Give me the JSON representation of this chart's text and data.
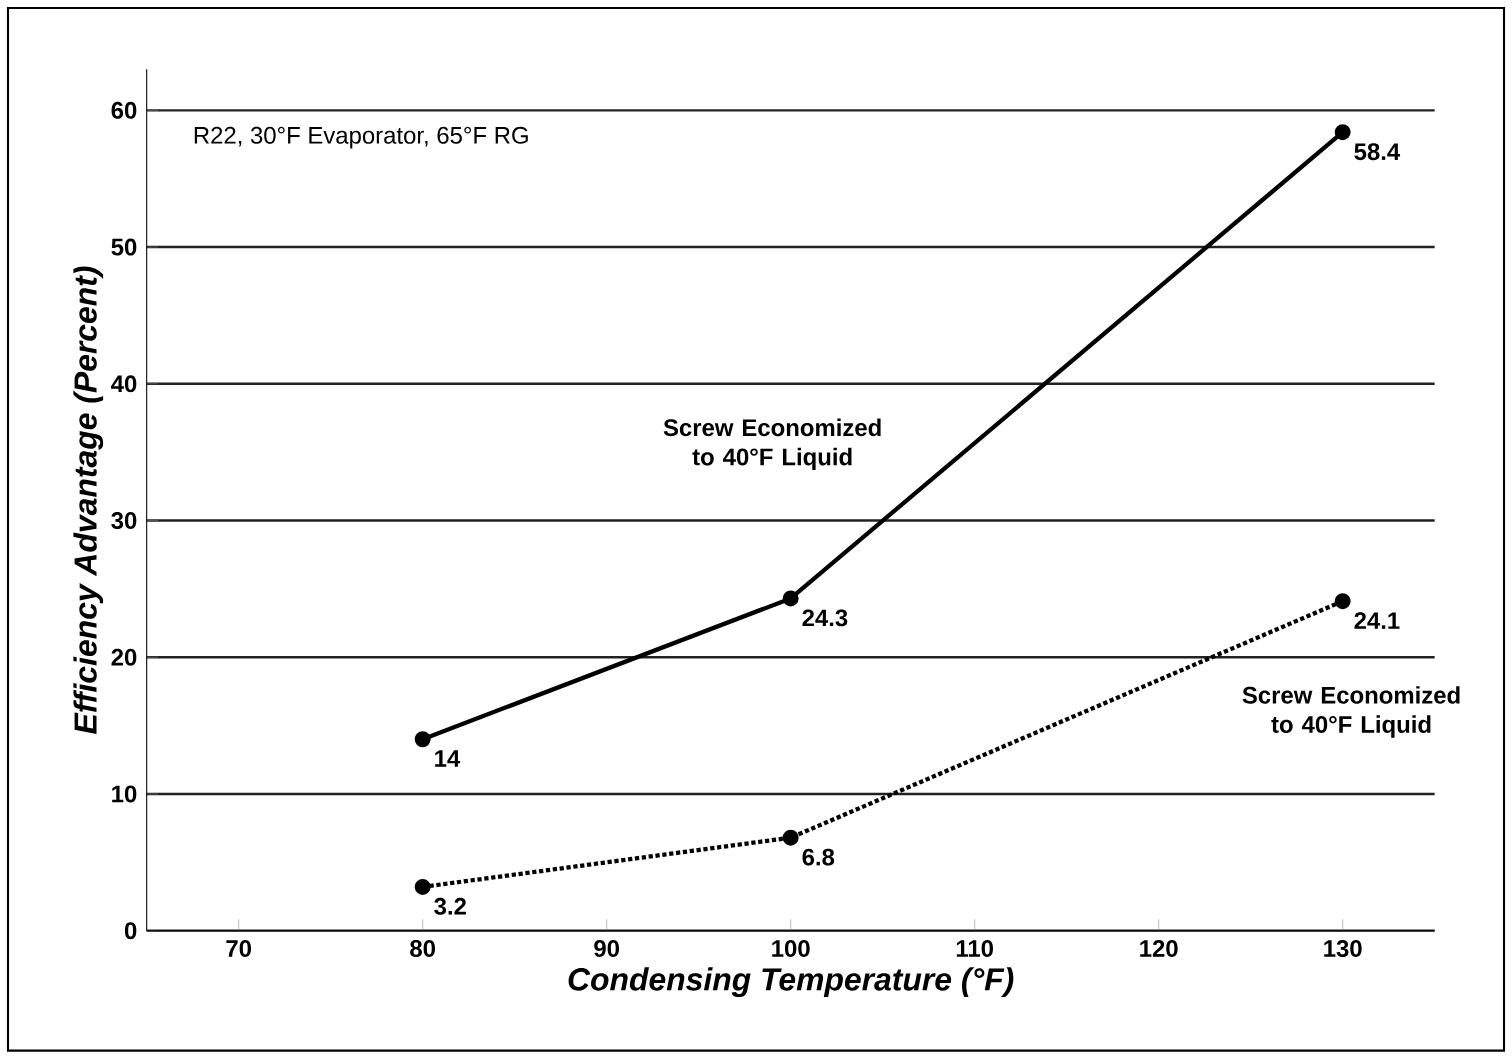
{
  "chart_data": {
    "type": "line",
    "xlabel": "Condensing Temperature (°F)",
    "ylabel": "Efficiency Advantage (Percent)",
    "annotations": [
      "R22, 30°F Evaporator, 65°F RG"
    ],
    "x": [
      80,
      100,
      130
    ],
    "series": [
      {
        "name": "Screw Economized to 40°F Liquid",
        "color": "#000000",
        "values": [
          14,
          24.3,
          58.4
        ],
        "line_style": "solid"
      },
      {
        "name": "Screw Economized to 40°F Liquid",
        "color": "#000000",
        "values": [
          3.2,
          6.8,
          24.1
        ],
        "line_style": "dotted"
      }
    ],
    "xlim": [
      65,
      135
    ],
    "xticks": [
      70,
      80,
      90,
      100,
      110,
      120,
      130
    ],
    "ylim": [
      0,
      63
    ],
    "yticks": [
      0,
      10,
      20,
      30,
      40,
      50,
      60
    ],
    "grid": "y",
    "marker": "circle",
    "data_labels": true,
    "legend": false
  }
}
